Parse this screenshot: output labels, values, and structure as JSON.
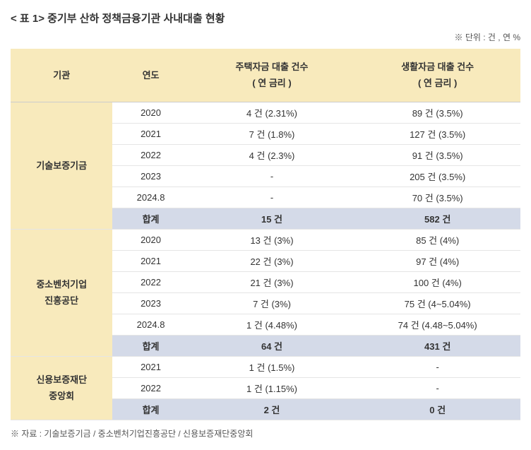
{
  "table": {
    "title": "< 표 1> 중기부 산하 정책금융기관 사내대출 현황",
    "unit": "※ 단위 : 건 , 연 %",
    "source": "※ 자료 : 기술보증기금 / 중소벤처기업진흥공단 / 신용보증재단중앙회",
    "colors": {
      "header_bg": "#f8eabc",
      "subtotal_bg": "#d4dae8",
      "border": "#cccccc",
      "row_border": "#e5e5e5",
      "text": "#333333",
      "meta_text": "#555555",
      "background": "#ffffff"
    },
    "columns": {
      "org": "기관",
      "year": "연도",
      "housing": "주택자금 대출 건수\n( 연 금리 )",
      "living": "생활자금 대출 건수\n( 연 금리 )"
    },
    "orgs": [
      {
        "name": "기술보증기금",
        "rows": [
          {
            "year": "2020",
            "housing": "4 건 (2.31%)",
            "living": "89 건 (3.5%)"
          },
          {
            "year": "2021",
            "housing": "7 건 (1.8%)",
            "living": "127 건 (3.5%)"
          },
          {
            "year": "2022",
            "housing": "4 건 (2.3%)",
            "living": "91 건 (3.5%)"
          },
          {
            "year": "2023",
            "housing": "-",
            "living": "205 건 (3.5%)"
          },
          {
            "year": "2024.8",
            "housing": "-",
            "living": "70 건 (3.5%)"
          }
        ],
        "subtotal": {
          "label": "합계",
          "housing": "15 건",
          "living": "582 건"
        }
      },
      {
        "name": "중소벤처기업\n진흥공단",
        "rows": [
          {
            "year": "2020",
            "housing": "13 건 (3%)",
            "living": "85 건 (4%)"
          },
          {
            "year": "2021",
            "housing": "22 건 (3%)",
            "living": "97 건 (4%)"
          },
          {
            "year": "2022",
            "housing": "21 건 (3%)",
            "living": "100 건 (4%)"
          },
          {
            "year": "2023",
            "housing": "7 건 (3%)",
            "living": "75 건 (4~5.04%)"
          },
          {
            "year": "2024.8",
            "housing": "1 건 (4.48%)",
            "living": "74 건 (4.48~5.04%)"
          }
        ],
        "subtotal": {
          "label": "합계",
          "housing": "64 건",
          "living": "431 건"
        }
      },
      {
        "name": "신용보증재단\n중앙회",
        "rows": [
          {
            "year": "2021",
            "housing": "1 건 (1.5%)",
            "living": "-"
          },
          {
            "year": "2022",
            "housing": "1 건 (1.15%)",
            "living": "-"
          }
        ],
        "subtotal": {
          "label": "합계",
          "housing": "2 건",
          "living": "0 건"
        }
      }
    ]
  }
}
